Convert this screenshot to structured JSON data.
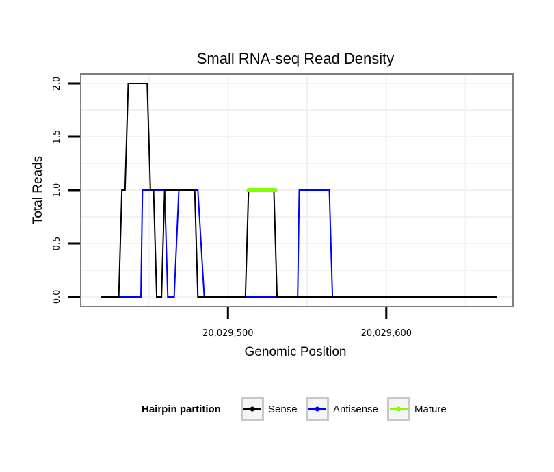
{
  "chart_data": {
    "type": "line",
    "title": "Small RNA-seq Read Density",
    "xlabel": "Genomic Position",
    "ylabel": "Total Reads",
    "xlim": [
      20029407,
      20029680
    ],
    "ylim": [
      -0.09,
      2.09
    ],
    "xticks": [
      20029500,
      20029600
    ],
    "xtick_labels": [
      "20,029,500",
      "20,029,600"
    ],
    "yticks": [
      0,
      0.5,
      1,
      1.5,
      2
    ],
    "ytick_labels": [
      "0.0",
      "0.5",
      "1.0",
      "1.5",
      "2.0"
    ],
    "grid": true,
    "legend": {
      "title": "Hairpin partition",
      "position": "bottom",
      "entries": [
        "Sense",
        "Antisense",
        "Mature"
      ]
    },
    "series": [
      {
        "name": "Antisense",
        "color": "#0000ff",
        "x": [
          20029420,
          20029431,
          20029445,
          20029446,
          20029453,
          20029454,
          20029460,
          20029462,
          20029466,
          20029469,
          20029481,
          20029485,
          20029544,
          20029545,
          20029564,
          20029566
        ],
        "y": [
          0,
          0,
          0,
          1,
          1,
          1,
          1,
          0,
          0,
          1,
          1,
          0,
          0,
          1,
          1,
          0
        ]
      },
      {
        "name": "Sense",
        "color": "#000000",
        "x": [
          20029420,
          20029431,
          20029433,
          20029435,
          20029437,
          20029449,
          20029451,
          20029453,
          20029455,
          20029458,
          20029460,
          20029462,
          20029470,
          20029472,
          20029479,
          20029481,
          20029511,
          20029513,
          20029529,
          20029531,
          20029670
        ],
        "y": [
          0,
          0,
          1,
          1,
          2,
          2,
          1,
          1,
          0,
          0,
          1,
          1,
          1,
          1,
          1,
          0,
          0,
          1,
          1,
          0,
          0
        ]
      },
      {
        "name": "Mature",
        "color": "#7fff00",
        "x": [
          20029513,
          20029530
        ],
        "y": [
          1,
          1
        ]
      }
    ]
  }
}
